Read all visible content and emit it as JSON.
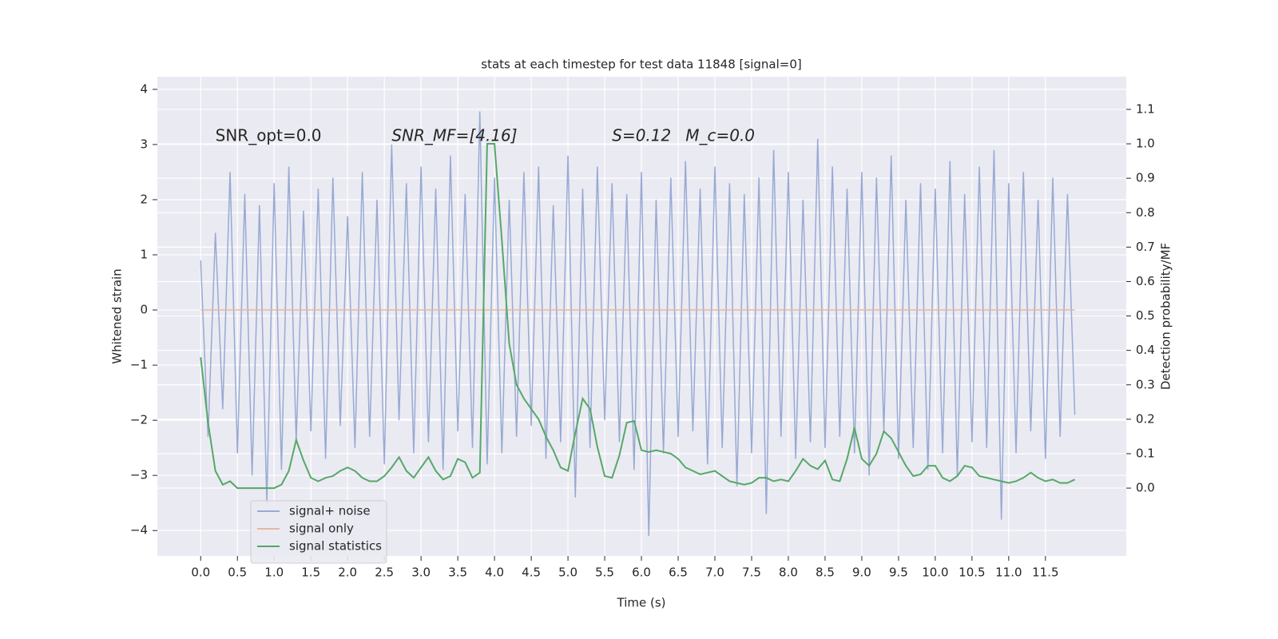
{
  "chart_data": {
    "type": "line",
    "title": "stats at each timestep for test data 11848 [signal=0]",
    "xlabel": "Time (s)",
    "ylabel": "Whitened strain",
    "y2label": "Detection probability/MF",
    "annotations": [
      "SNR_opt=0.0",
      "SNR_MF=[4.16]",
      "S=0.12",
      "M_c=0.0"
    ],
    "x": [
      0,
      0.1,
      0.2,
      0.3,
      0.4,
      0.5,
      0.6,
      0.7,
      0.8,
      0.9,
      1,
      1.1,
      1.2,
      1.3,
      1.4,
      1.5,
      1.6,
      1.7,
      1.8,
      1.9,
      2,
      2.1,
      2.2,
      2.3,
      2.4,
      2.5,
      2.6,
      2.7,
      2.8,
      2.9,
      3,
      3.1,
      3.2,
      3.3,
      3.4,
      3.5,
      3.6,
      3.7,
      3.8,
      3.9,
      4,
      4.1,
      4.2,
      4.3,
      4.4,
      4.5,
      4.6,
      4.7,
      4.8,
      4.9,
      5,
      5.1,
      5.2,
      5.3,
      5.4,
      5.5,
      5.6,
      5.7,
      5.8,
      5.9,
      6,
      6.1,
      6.2,
      6.3,
      6.4,
      6.5,
      6.6,
      6.7,
      6.8,
      6.9,
      7,
      7.1,
      7.2,
      7.3,
      7.4,
      7.5,
      7.6,
      7.7,
      7.8,
      7.9,
      8,
      8.1,
      8.2,
      8.3,
      8.4,
      8.5,
      8.6,
      8.7,
      8.8,
      8.9,
      9,
      9.1,
      9.2,
      9.3,
      9.4,
      9.5,
      9.6,
      9.7,
      9.8,
      9.9,
      10,
      10.1,
      10.2,
      10.3,
      10.4,
      10.5,
      10.6,
      10.7,
      10.8,
      10.9,
      11,
      11.1,
      11.2,
      11.3,
      11.4,
      11.5,
      11.6,
      11.7,
      11.8,
      11.9
    ],
    "series": [
      {
        "name": "signal+ noise",
        "color": "#98aad3",
        "axis": "y",
        "values": [
          0.9,
          -2.3,
          1.4,
          -1.8,
          2.5,
          -2.6,
          2.1,
          -3.0,
          1.9,
          -3.5,
          2.3,
          -2.9,
          2.6,
          -2.4,
          1.8,
          -2.2,
          2.2,
          -2.7,
          2.4,
          -2.1,
          1.7,
          -2.5,
          2.5,
          -2.3,
          2.0,
          -2.8,
          3.0,
          -2.0,
          2.3,
          -2.6,
          2.6,
          -2.4,
          2.2,
          -2.9,
          2.8,
          -2.2,
          2.1,
          -2.5,
          3.6,
          -2.8,
          2.4,
          -2.6,
          2.0,
          -2.3,
          2.5,
          -2.1,
          2.6,
          -2.7,
          1.9,
          -2.4,
          2.8,
          -3.4,
          2.2,
          -2.5,
          2.6,
          -2.0,
          2.3,
          -2.4,
          2.1,
          -2.9,
          2.5,
          -4.1,
          2.0,
          -2.6,
          2.4,
          -2.3,
          2.7,
          -2.2,
          2.2,
          -2.8,
          2.6,
          -2.5,
          2.3,
          -3.2,
          2.1,
          -2.6,
          2.4,
          -3.7,
          2.9,
          -2.3,
          2.5,
          -2.7,
          2.0,
          -2.4,
          3.1,
          -2.5,
          2.6,
          -2.3,
          2.2,
          -2.6,
          2.5,
          -3.0,
          2.4,
          -2.2,
          2.8,
          -2.7,
          2.0,
          -2.5,
          2.3,
          -2.9,
          2.2,
          -2.6,
          2.7,
          -3.0,
          2.1,
          -2.4,
          2.6,
          -2.5,
          2.9,
          -3.8,
          2.3,
          -2.6,
          2.5,
          -2.2,
          2.0,
          -2.7,
          2.4,
          -2.3,
          2.1,
          -1.9
        ]
      },
      {
        "name": "signal only",
        "color": "#e8b69e",
        "axis": "y",
        "values": [
          0,
          0,
          0,
          0,
          0,
          0,
          0,
          0,
          0,
          0,
          0,
          0,
          0,
          0,
          0,
          0,
          0,
          0,
          0,
          0,
          0,
          0,
          0,
          0,
          0,
          0,
          0,
          0,
          0,
          0,
          0,
          0,
          0,
          0,
          0,
          0,
          0,
          0,
          0,
          0,
          0,
          0,
          0,
          0,
          0,
          0,
          0,
          0,
          0,
          0,
          0,
          0,
          0,
          0,
          0,
          0,
          0,
          0,
          0,
          0,
          0,
          0,
          0,
          0,
          0,
          0,
          0,
          0,
          0,
          0,
          0,
          0,
          0,
          0,
          0,
          0,
          0,
          0,
          0,
          0,
          0,
          0,
          0,
          0,
          0,
          0,
          0,
          0,
          0,
          0,
          0,
          0,
          0,
          0,
          0,
          0,
          0,
          0,
          0,
          0,
          0,
          0,
          0,
          0,
          0,
          0,
          0,
          0,
          0,
          0,
          0,
          0,
          0,
          0,
          0,
          0,
          0,
          0,
          0,
          0
        ]
      },
      {
        "name": "signal statistics",
        "color": "#55a868",
        "axis": "y2",
        "values": [
          0.38,
          0.19,
          0.05,
          0.01,
          0.02,
          0.0,
          0.0,
          0.0,
          0.0,
          0.0,
          0.0,
          0.01,
          0.05,
          0.14,
          0.08,
          0.03,
          0.02,
          0.03,
          0.035,
          0.05,
          0.06,
          0.05,
          0.03,
          0.02,
          0.02,
          0.035,
          0.06,
          0.09,
          0.05,
          0.03,
          0.06,
          0.09,
          0.05,
          0.025,
          0.035,
          0.085,
          0.075,
          0.03,
          0.045,
          1.0,
          1.0,
          0.72,
          0.42,
          0.3,
          0.26,
          0.23,
          0.2,
          0.15,
          0.11,
          0.06,
          0.05,
          0.16,
          0.26,
          0.23,
          0.12,
          0.035,
          0.03,
          0.095,
          0.19,
          0.195,
          0.11,
          0.105,
          0.11,
          0.105,
          0.1,
          0.085,
          0.06,
          0.05,
          0.04,
          0.045,
          0.05,
          0.035,
          0.02,
          0.015,
          0.01,
          0.015,
          0.03,
          0.03,
          0.02,
          0.025,
          0.02,
          0.05,
          0.085,
          0.065,
          0.055,
          0.08,
          0.025,
          0.02,
          0.085,
          0.175,
          0.085,
          0.065,
          0.1,
          0.165,
          0.145,
          0.105,
          0.065,
          0.035,
          0.04,
          0.065,
          0.065,
          0.03,
          0.02,
          0.035,
          0.065,
          0.06,
          0.035,
          0.03,
          0.025,
          0.02,
          0.015,
          0.02,
          0.03,
          0.045,
          0.03,
          0.02,
          0.025,
          0.015,
          0.015,
          0.025
        ]
      }
    ],
    "xlim": [
      -0.59,
      12.6
    ],
    "xticks": [
      {
        "value": 0,
        "label": "0.0"
      },
      0.5,
      {
        "value": 1,
        "label": "1.0"
      },
      1.5,
      {
        "value": 2,
        "label": "2.0"
      },
      2.5,
      {
        "value": 3,
        "label": "3.0"
      },
      3.5,
      {
        "value": 4,
        "label": "4.0"
      },
      4.5,
      {
        "value": 5,
        "label": "5.0"
      },
      5.5,
      {
        "value": 6,
        "label": "6.0"
      },
      6.5,
      {
        "value": 7,
        "label": "7.0"
      },
      7.5,
      {
        "value": 8,
        "label": "8.0"
      },
      8.5,
      {
        "value": 9,
        "label": "9.0"
      },
      9.5,
      {
        "value": 10,
        "label": "10.0"
      },
      10.5,
      {
        "value": 11,
        "label": "11.0"
      },
      11.5
    ],
    "ylim": [
      -4.46,
      4.23
    ],
    "yticks": [
      {
        "value": -4,
        "label": "−4"
      },
      {
        "value": -3,
        "label": "−3"
      },
      {
        "value": -2,
        "label": "−2"
      },
      {
        "value": -1,
        "label": "−1"
      },
      0,
      1,
      2,
      3,
      4
    ],
    "y2lim": [
      -0.197,
      1.195
    ],
    "y2ticks": [
      {
        "value": 0,
        "label": "0.0"
      },
      0.1,
      0.2,
      0.3,
      0.4,
      0.5,
      0.6,
      0.7,
      0.8,
      0.9,
      {
        "value": 1,
        "label": "1.0"
      },
      1.1
    ],
    "grid": true,
    "legend": "lower left"
  }
}
